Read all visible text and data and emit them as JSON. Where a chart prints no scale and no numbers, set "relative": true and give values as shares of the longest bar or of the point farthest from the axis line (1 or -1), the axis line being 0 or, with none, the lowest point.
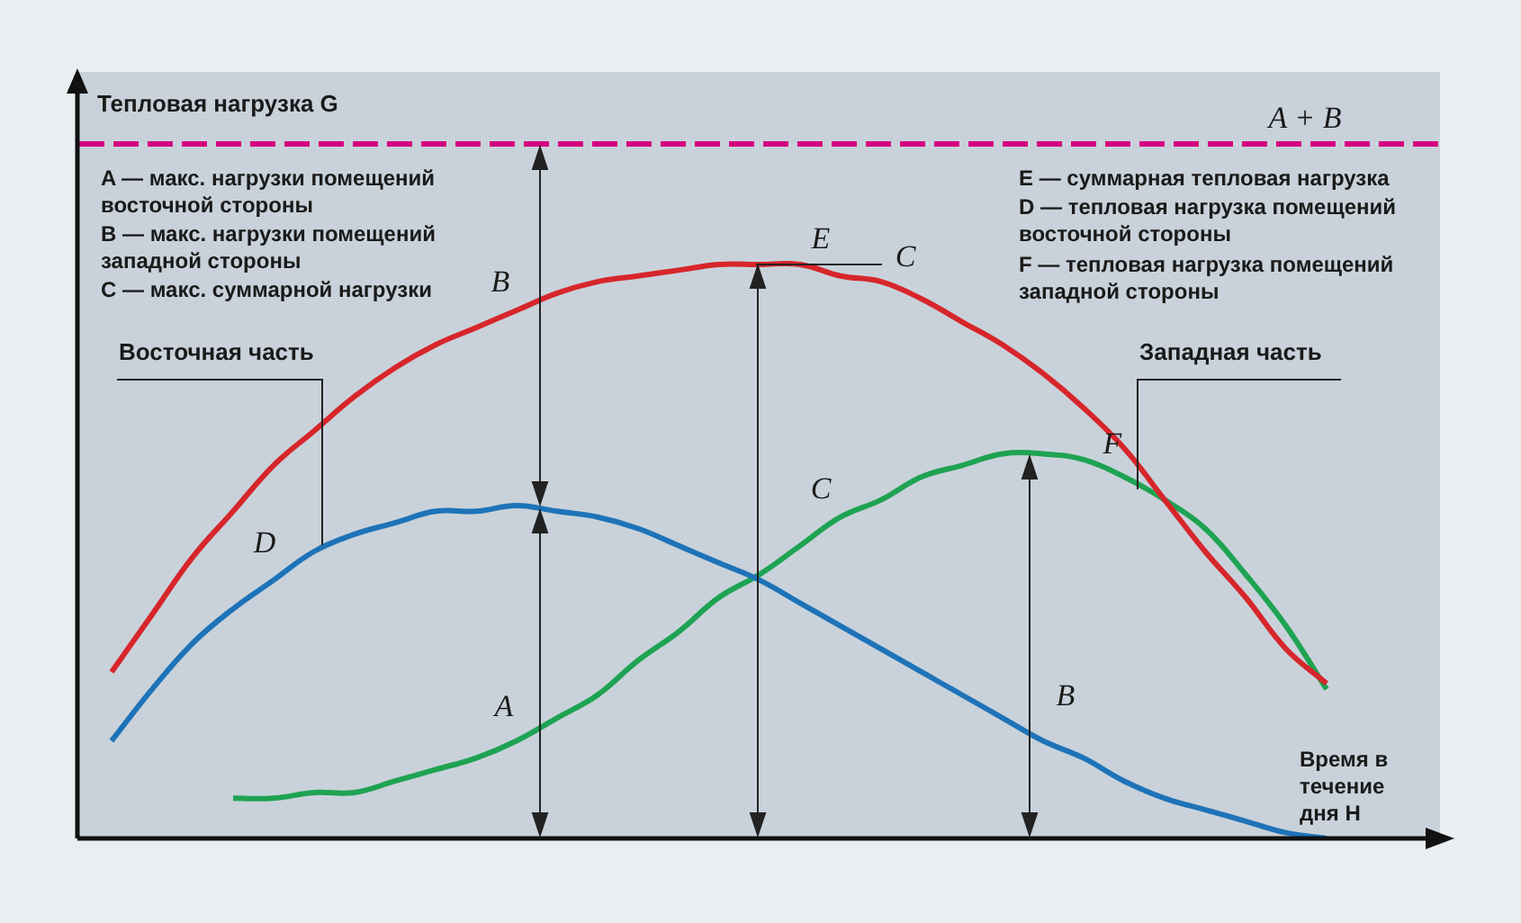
{
  "chart_data": {
    "type": "line",
    "relative": true,
    "tick_labels": false,
    "xlabel": "Время в течение дня H",
    "categories": [
      null,
      null,
      null,
      null,
      null,
      null,
      null,
      null,
      null,
      null,
      null,
      null,
      null,
      null,
      null,
      null,
      null,
      null,
      null,
      null,
      null,
      null,
      null,
      null,
      null,
      null,
      null,
      null,
      null,
      null,
      null
    ],
    "series": [
      {
        "color": "#d7262b",
        "values": [
          0.29,
          0.39,
          0.49,
          0.57,
          0.65,
          0.71,
          0.77,
          0.82,
          0.86,
          0.89,
          0.92,
          0.95,
          0.97,
          0.98,
          0.99,
          1.0,
          1.0,
          1.0,
          0.98,
          0.97,
          0.94,
          0.9,
          0.86,
          0.81,
          0.75,
          0.68,
          0.59,
          0.5,
          0.42,
          0.33,
          0.27
        ]
      },
      {
        "color": "#1e73b8",
        "values": [
          0.17,
          0.26,
          0.34,
          0.4,
          0.45,
          0.5,
          0.53,
          0.55,
          0.57,
          0.57,
          0.58,
          0.57,
          0.56,
          0.54,
          0.51,
          0.48,
          0.45,
          0.41,
          0.37,
          0.33,
          0.29,
          0.25,
          0.21,
          0.17,
          0.14,
          0.1,
          0.07,
          0.05,
          0.03,
          0.01,
          0.0
        ]
      },
      {
        "color": "#1ea352",
        "values": [
          null,
          null,
          null,
          0.07,
          0.07,
          0.08,
          0.08,
          0.1,
          0.12,
          0.14,
          0.17,
          0.21,
          0.25,
          0.31,
          0.36,
          0.42,
          0.46,
          0.51,
          0.56,
          0.59,
          0.63,
          0.65,
          0.67,
          0.67,
          0.66,
          0.63,
          0.59,
          0.54,
          0.46,
          0.37,
          0.26
        ]
      }
    ],
    "ref_lines": [
      {
        "axis": "y",
        "value": 1.21,
        "label": "A + B",
        "color": "#d4007f",
        "line_style": "dashed"
      }
    ],
    "annotations": [
      "A — макс. нагрузки помещений восточной стороны",
      "B — макс. нагрузки помещений западной стороны",
      "C — макс. суммарной нагрузки",
      "E — суммарная тепловая нагрузка",
      "D — тепловая нагрузка помещений восточной стороны",
      "F — тепловая нагрузка помещений западной стороны",
      "Восточная часть",
      "Западная часть",
      "B",
      "E",
      "C",
      "D",
      "C",
      "F",
      "A",
      "B",
      "Тепловая нагрузка G"
    ]
  }
}
